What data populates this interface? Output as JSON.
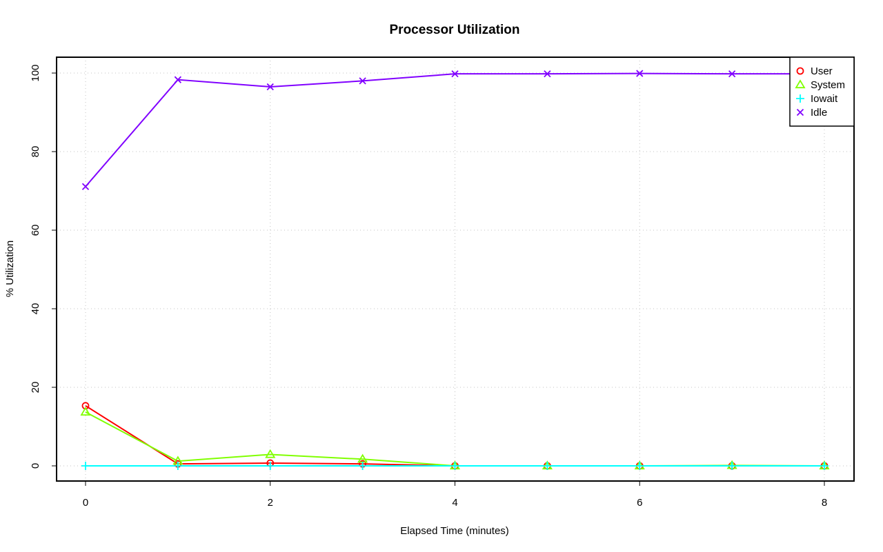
{
  "chart_data": {
    "type": "line",
    "title": "Processor Utilization",
    "xlabel": "Elapsed Time (minutes)",
    "ylabel": "% Utilization",
    "x": [
      0,
      1,
      2,
      3,
      4,
      5,
      6,
      7,
      8
    ],
    "xlim": [
      0,
      8
    ],
    "ylim": [
      0,
      100
    ],
    "x_ticks": [
      "0",
      "2",
      "4",
      "6",
      "8"
    ],
    "x_tick_values": [
      0,
      2,
      4,
      6,
      8
    ],
    "y_ticks": [
      "0",
      "20",
      "40",
      "60",
      "80",
      "100"
    ],
    "y_tick_values": [
      0,
      20,
      40,
      60,
      80,
      100
    ],
    "grid": true,
    "legend_position": "top-right",
    "series": [
      {
        "name": "User",
        "color": "#ff0000",
        "marker": "circle",
        "values": [
          15.3,
          0.5,
          0.7,
          0.5,
          0.0,
          0.0,
          0.0,
          0.0,
          0.0
        ]
      },
      {
        "name": "System",
        "color": "#80ff00",
        "marker": "triangle",
        "values": [
          13.7,
          1.2,
          2.9,
          1.7,
          0.0,
          0.0,
          0.0,
          0.1,
          0.0
        ]
      },
      {
        "name": "Iowait",
        "color": "#00ffff",
        "marker": "plus",
        "values": [
          0.0,
          0.0,
          0.0,
          0.0,
          0.0,
          0.0,
          0.0,
          0.0,
          0.0
        ]
      },
      {
        "name": "Idle",
        "color": "#8000ff",
        "marker": "cross",
        "values": [
          71.1,
          98.3,
          96.5,
          98.0,
          99.8,
          99.8,
          99.9,
          99.8,
          99.8
        ]
      }
    ]
  }
}
